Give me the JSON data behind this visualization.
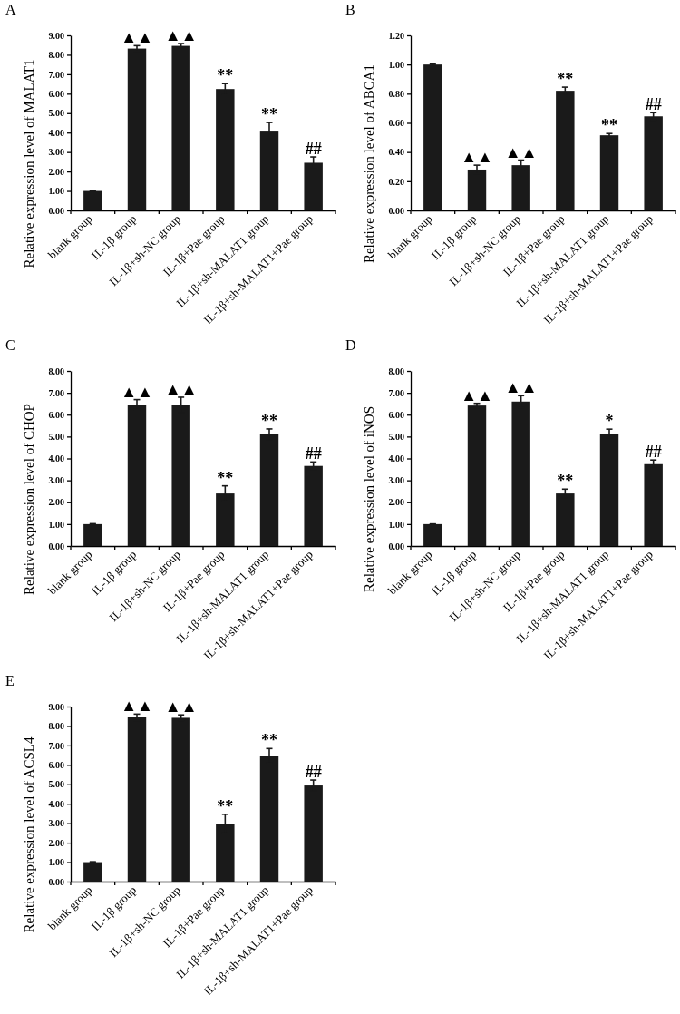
{
  "chart_data": [
    {
      "type": "bar",
      "title": "A",
      "ylabel": "Relative expression level of MALAT1",
      "categories": [
        "blank group",
        "IL-1β group",
        "IL-1β+sh-NC group",
        "IL-1β+Pae group",
        "IL-1β+sh-MALAT1 group",
        "IL-1β+sh-MALAT1+Pae group"
      ],
      "values": [
        1.0,
        8.32,
        8.46,
        6.24,
        4.1,
        2.45
      ],
      "errors": [
        0.02,
        0.15,
        0.12,
        0.28,
        0.42,
        0.3
      ],
      "color": "#1a1a1a",
      "ylim": [
        0,
        9
      ],
      "yticks": [
        {
          "value": 0,
          "label": "0.00"
        },
        {
          "value": 1,
          "label": "1.00"
        },
        {
          "value": 2,
          "label": "2.00"
        },
        {
          "value": 3,
          "label": "3.00"
        },
        {
          "value": 4,
          "label": "4.00"
        },
        {
          "value": 5,
          "label": "5.00"
        },
        {
          "value": 6,
          "label": "6.00"
        },
        {
          "value": 7,
          "label": "7.00"
        },
        {
          "value": 8,
          "label": "8.00"
        },
        {
          "value": 9,
          "label": "9.00"
        }
      ],
      "grid": false,
      "annotations": [
        {
          "text": "▲▲",
          "x": "IL-1β group",
          "y": 8.47
        },
        {
          "text": "▲▲",
          "x": "IL-1β+sh-NC group",
          "y": 8.58
        },
        {
          "text": "**",
          "x": "IL-1β+Pae group",
          "y": 6.52
        },
        {
          "text": "**",
          "x": "IL-1β+sh-MALAT1 group",
          "y": 4.52
        },
        {
          "text": "##",
          "x": "IL-1β+sh-MALAT1+Pae group",
          "y": 2.75
        }
      ]
    },
    {
      "type": "bar",
      "title": "B",
      "ylabel": "Relative expression level of ABCA1",
      "categories": [
        "blank group",
        "IL-1β group",
        "IL-1β+sh-NC group",
        "IL-1β+Pae group",
        "IL-1β+sh-MALAT1 group",
        "IL-1β+sh-MALAT1+Pae group"
      ],
      "values": [
        1.0,
        0.28,
        0.31,
        0.82,
        0.515,
        0.645
      ],
      "errors": [
        0.005,
        0.03,
        0.035,
        0.025,
        0.012,
        0.025
      ],
      "color": "#1a1a1a",
      "ylim": [
        0,
        1.2
      ],
      "yticks": [
        {
          "value": 0,
          "label": "0.00"
        },
        {
          "value": 0.2,
          "label": "0.20"
        },
        {
          "value": 0.4,
          "label": "0.40"
        },
        {
          "value": 0.6,
          "label": "0.60"
        },
        {
          "value": 0.8,
          "label": "0.80"
        },
        {
          "value": 1,
          "label": "1.00"
        },
        {
          "value": 1.2,
          "label": "1.20"
        }
      ],
      "grid": false,
      "annotations": [
        {
          "text": "▲▲",
          "x": "IL-1β group",
          "y": 0.31
        },
        {
          "text": "▲▲",
          "x": "IL-1β+sh-NC group",
          "y": 0.345
        },
        {
          "text": "**",
          "x": "IL-1β+Pae group",
          "y": 0.845
        },
        {
          "text": "**",
          "x": "IL-1β+sh-MALAT1 group",
          "y": 0.527
        },
        {
          "text": "##",
          "x": "IL-1β+sh-MALAT1+Pae group",
          "y": 0.67
        }
      ]
    },
    {
      "type": "bar",
      "title": "C",
      "ylabel": "Relative expression level of CHOP",
      "categories": [
        "blank group",
        "IL-1β group",
        "IL-1β+sh-NC group",
        "IL-1β+Pae group",
        "IL-1β+sh-MALAT1 group",
        "IL-1β+sh-MALAT1+Pae group"
      ],
      "values": [
        1.0,
        6.46,
        6.45,
        2.4,
        5.1,
        3.66
      ],
      "errors": [
        0.02,
        0.23,
        0.35,
        0.35,
        0.25,
        0.18
      ],
      "color": "#1a1a1a",
      "ylim": [
        0,
        8
      ],
      "yticks": [
        {
          "value": 0,
          "label": "0.00"
        },
        {
          "value": 1,
          "label": "1.00"
        },
        {
          "value": 2,
          "label": "2.00"
        },
        {
          "value": 3,
          "label": "3.00"
        },
        {
          "value": 4,
          "label": "4.00"
        },
        {
          "value": 5,
          "label": "5.00"
        },
        {
          "value": 6,
          "label": "6.00"
        },
        {
          "value": 7,
          "label": "7.00"
        },
        {
          "value": 8,
          "label": "8.00"
        }
      ],
      "grid": false,
      "annotations": [
        {
          "text": "▲▲",
          "x": "IL-1β group",
          "y": 6.69
        },
        {
          "text": "▲▲",
          "x": "IL-1β+sh-NC group",
          "y": 6.8
        },
        {
          "text": "**",
          "x": "IL-1β+Pae group",
          "y": 2.75
        },
        {
          "text": "**",
          "x": "IL-1β+sh-MALAT1 group",
          "y": 5.35
        },
        {
          "text": "##",
          "x": "IL-1β+sh-MALAT1+Pae group",
          "y": 3.84
        }
      ]
    },
    {
      "type": "bar",
      "title": "D",
      "ylabel": "Relative expression level of iNOS",
      "categories": [
        "blank group",
        "IL-1β group",
        "IL-1β+sh-NC group",
        "IL-1β+Pae group",
        "IL-1β+sh-MALAT1 group",
        "IL-1β+sh-MALAT1+Pae group"
      ],
      "values": [
        1.0,
        6.42,
        6.6,
        2.4,
        5.14,
        3.74
      ],
      "errors": [
        0.01,
        0.1,
        0.27,
        0.2,
        0.2,
        0.19
      ],
      "color": "#1a1a1a",
      "ylim": [
        0,
        8
      ],
      "yticks": [
        {
          "value": 0,
          "label": "0.00"
        },
        {
          "value": 1,
          "label": "1.00"
        },
        {
          "value": 2,
          "label": "2.00"
        },
        {
          "value": 3,
          "label": "3.00"
        },
        {
          "value": 4,
          "label": "4.00"
        },
        {
          "value": 5,
          "label": "5.00"
        },
        {
          "value": 6,
          "label": "6.00"
        },
        {
          "value": 7,
          "label": "7.00"
        },
        {
          "value": 8,
          "label": "8.00"
        }
      ],
      "grid": false,
      "annotations": [
        {
          "text": "▲▲",
          "x": "IL-1β group",
          "y": 6.52
        },
        {
          "text": "▲▲",
          "x": "IL-1β+sh-NC group",
          "y": 6.87
        },
        {
          "text": "**",
          "x": "IL-1β+Pae group",
          "y": 2.6
        },
        {
          "text": "*",
          "x": "IL-1β+sh-MALAT1 group",
          "y": 5.34
        },
        {
          "text": "##",
          "x": "IL-1β+sh-MALAT1+Pae group",
          "y": 3.93
        }
      ]
    },
    {
      "type": "bar",
      "title": "E",
      "ylabel": "Relative expression level of ACSL4",
      "categories": [
        "blank group",
        "IL-1β group",
        "IL-1β+sh-NC group",
        "IL-1β+Pae group",
        "IL-1β+sh-MALAT1 group",
        "IL-1β+sh-MALAT1+Pae group"
      ],
      "values": [
        1.0,
        8.44,
        8.42,
        2.98,
        6.47,
        4.94
      ],
      "errors": [
        0.02,
        0.17,
        0.15,
        0.48,
        0.37,
        0.28
      ],
      "color": "#1a1a1a",
      "ylim": [
        0,
        9
      ],
      "yticks": [
        {
          "value": 0,
          "label": "0.00"
        },
        {
          "value": 1,
          "label": "1.00"
        },
        {
          "value": 2,
          "label": "2.00"
        },
        {
          "value": 3,
          "label": "3.00"
        },
        {
          "value": 4,
          "label": "4.00"
        },
        {
          "value": 5,
          "label": "5.00"
        },
        {
          "value": 6,
          "label": "6.00"
        },
        {
          "value": 7,
          "label": "7.00"
        },
        {
          "value": 8,
          "label": "8.00"
        },
        {
          "value": 9,
          "label": "9.00"
        }
      ],
      "grid": false,
      "annotations": [
        {
          "text": "▲▲",
          "x": "IL-1β group",
          "y": 8.61
        },
        {
          "text": "▲▲",
          "x": "IL-1β+sh-NC group",
          "y": 8.57
        },
        {
          "text": "**",
          "x": "IL-1β+Pae group",
          "y": 3.46
        },
        {
          "text": "**",
          "x": "IL-1β+sh-MALAT1 group",
          "y": 6.84
        },
        {
          "text": "##",
          "x": "IL-1β+sh-MALAT1+Pae group",
          "y": 5.22
        }
      ]
    }
  ]
}
